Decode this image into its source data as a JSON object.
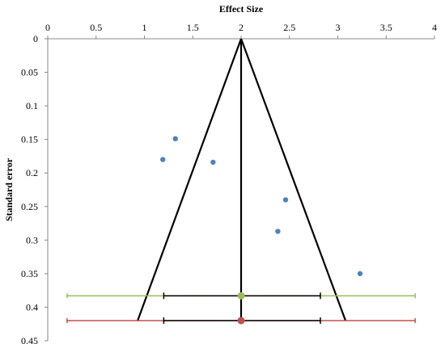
{
  "chart_data": {
    "type": "scatter",
    "title": "",
    "xlabel": "Effect Size",
    "ylabel": "Standard error",
    "xlim": [
      0,
      4
    ],
    "ylim": [
      0,
      0.45
    ],
    "y_inverted": true,
    "x_axis_position": "top",
    "grid": false,
    "x_ticks": [
      "0",
      "0.5",
      "1",
      "1.5",
      "2",
      "2.5",
      "3",
      "3.5",
      "4"
    ],
    "y_ticks": [
      "0",
      "0.05",
      "0.1",
      "0.15",
      "0.2",
      "0.25",
      "0.3",
      "0.35",
      "0.4",
      "0.45"
    ],
    "studies": {
      "x": [
        1.32,
        1.19,
        1.71,
        2.46,
        2.38,
        3.23
      ],
      "y": [
        0.149,
        0.18,
        0.184,
        0.24,
        0.287,
        0.35
      ],
      "color": "#4f81bd"
    },
    "funnel": {
      "apex": [
        2.0,
        0.0
      ],
      "base_left": [
        0.93,
        0.42
      ],
      "base_right": [
        3.08,
        0.42
      ],
      "center_line": [
        [
          2.0,
          0.0
        ],
        [
          2.0,
          0.42
        ]
      ],
      "color": "#000000"
    },
    "pooled_estimates": [
      {
        "estimate": 2.0,
        "y": 0.383,
        "ci": [
          1.2,
          2.82
        ],
        "pi": [
          0.2,
          3.8
        ],
        "marker_color": "#9bbb59",
        "pi_color": "#9bbb59"
      },
      {
        "estimate": 2.0,
        "y": 0.42,
        "ci": [
          1.2,
          2.82
        ],
        "pi": [
          0.2,
          3.8
        ],
        "marker_color": "#c0504d",
        "pi_color": "#c0504d"
      }
    ]
  }
}
